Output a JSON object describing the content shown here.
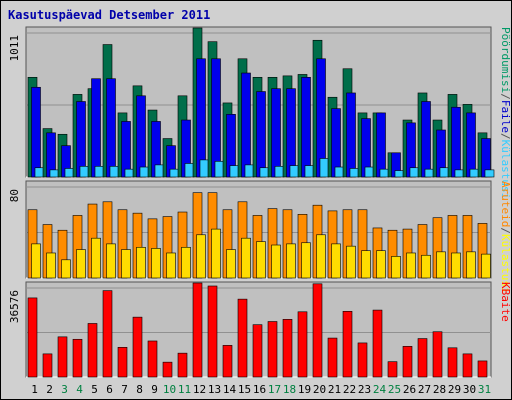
{
  "chart_data": {
    "type": "bar",
    "title": "Kasutuspäevad Detsember 2011",
    "days": [
      "1",
      "2",
      "3",
      "4",
      "5",
      "6",
      "7",
      "8",
      "9",
      "10",
      "11",
      "12",
      "13",
      "14",
      "15",
      "16",
      "17",
      "18",
      "19",
      "20",
      "21",
      "22",
      "23",
      "24",
      "25",
      "26",
      "27",
      "28",
      "29",
      "30",
      "31"
    ],
    "weekend_days": [
      "3",
      "4",
      "10",
      "11",
      "17",
      "18",
      "24",
      "25",
      "31"
    ],
    "panels": [
      {
        "id": "top",
        "ymax": 1011,
        "ymax_label": "1011",
        "legend": [
          {
            "label": "Pöördumisi",
            "color": "#009966"
          },
          {
            "label": "/",
            "color": "#555555"
          },
          {
            "label": "Faile",
            "color": "#0000cc"
          },
          {
            "label": "/",
            "color": "#555555"
          },
          {
            "label": "Külastusi",
            "color": "#33ccff"
          }
        ],
        "series": [
          {
            "name": "Pöördumisi",
            "color": "#006e4a",
            "values": [
              700,
              340,
              300,
              580,
              620,
              930,
              450,
              640,
              470,
              270,
              570,
              1060,
              950,
              520,
              830,
              700,
              700,
              710,
              720,
              960,
              560,
              760,
              450,
              450,
              170,
              400,
              590,
              400,
              580,
              510,
              310
            ]
          },
          {
            "name": "Faile",
            "color": "#0000ee",
            "values": [
              630,
              310,
              220,
              530,
              690,
              690,
              390,
              570,
              390,
              220,
              400,
              830,
              830,
              440,
              730,
              600,
              620,
              620,
              700,
              830,
              480,
              590,
              410,
              450,
              170,
              380,
              530,
              330,
              490,
              450,
              270
            ]
          },
          {
            "name": "Külastusi",
            "color": "#33ccff",
            "values": [
              65,
              50,
              60,
              75,
              75,
              75,
              55,
              70,
              85,
              55,
              95,
              120,
              110,
              80,
              85,
              65,
              75,
              80,
              80,
              130,
              70,
              60,
              70,
              55,
              45,
              65,
              55,
              65,
              50,
              55,
              50
            ]
          }
        ]
      },
      {
        "id": "middle",
        "ymax": 80,
        "ymax_label": "80",
        "legend": [
          {
            "label": "Aruteid",
            "color": "#ff8800"
          },
          {
            "label": "/",
            "color": "#555555"
          },
          {
            "label": "Külastusi",
            "color": "#ffff00"
          }
        ],
        "series": [
          {
            "name": "Aruteid",
            "color": "#ff8c00",
            "values": [
              60,
              47,
              42,
              55,
              65,
              67,
              60,
              57,
              52,
              54,
              58,
              75,
              75,
              60,
              67,
              55,
              61,
              60,
              56,
              64,
              59,
              60,
              60,
              44,
              42,
              43,
              47,
              53,
              55,
              55,
              48
            ]
          },
          {
            "name": "Külastusi",
            "color": "#ffdd00",
            "values": [
              30,
              22,
              16,
              25,
              35,
              30,
              25,
              27,
              26,
              22,
              27,
              38,
              43,
              25,
              35,
              32,
              29,
              30,
              31,
              38,
              30,
              28,
              24,
              24,
              19,
              22,
              20,
              23,
              22,
              23,
              21
            ]
          }
        ]
      },
      {
        "id": "bottom",
        "ymax": 36576,
        "ymax_label": "36576",
        "legend": [
          {
            "label": "KBaite",
            "color": "#ff0000"
          }
        ],
        "series": [
          {
            "name": "KBaite",
            "color": "#ff0000",
            "values": [
              32500,
              9500,
              16500,
              15500,
              22000,
              35500,
              12200,
              24600,
              14800,
              6100,
              9800,
              43300,
              37400,
              13000,
              32000,
              21500,
              22800,
              23700,
              26800,
              38300,
              16000,
              27000,
              14000,
              27500,
              6300,
              12600,
              15800,
              18600,
              12000,
              9500,
              6600
            ]
          }
        ]
      }
    ]
  }
}
